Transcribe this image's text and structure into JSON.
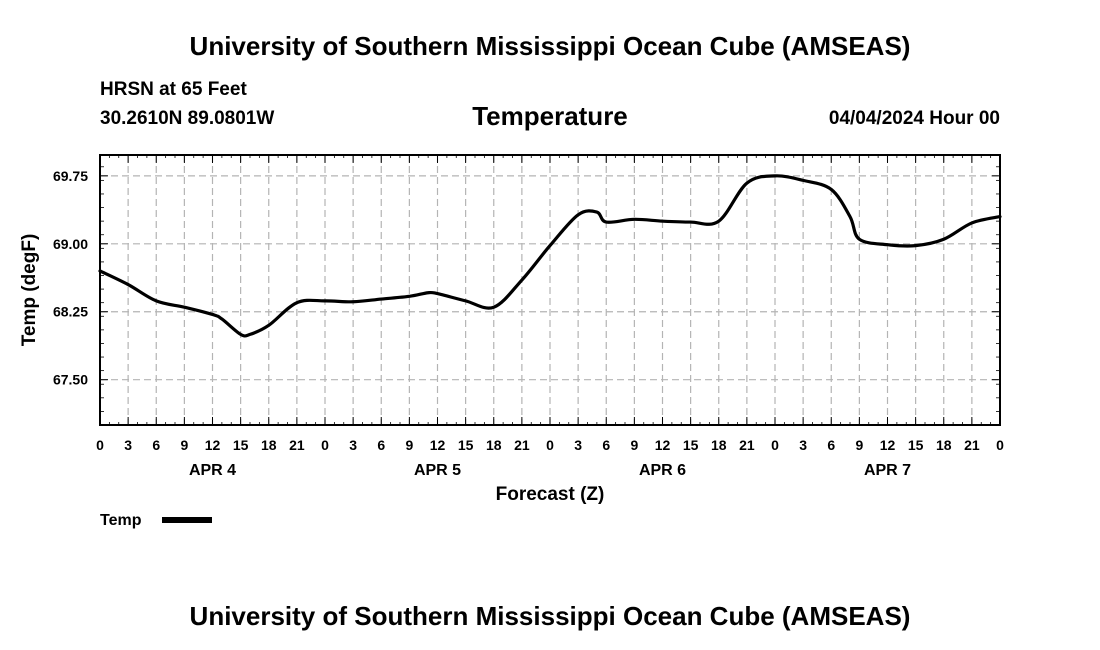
{
  "header": {
    "title": "University of Southern Mississippi Ocean Cube (AMSEAS)",
    "station": "HRSN at 65 Feet",
    "coords": "30.2610N  89.0801W",
    "date": "04/04/2024 Hour 00"
  },
  "footer": {
    "title": "University of Southern Mississippi Ocean Cube (AMSEAS)"
  },
  "chart_data": {
    "type": "line",
    "title": "Temperature",
    "xlabel": "Forecast (Z)",
    "ylabel": "Temp (degF)",
    "xlim": [
      0,
      96
    ],
    "ylim": [
      67.0,
      69.98
    ],
    "grid": true,
    "yticks": [
      67.5,
      68.25,
      69.0,
      69.75
    ],
    "ytick_labels": [
      "67.50",
      "68.25",
      "69.00",
      "69.75"
    ],
    "xtick_hours": [
      0,
      3,
      6,
      9,
      12,
      15,
      18,
      21,
      24,
      27,
      30,
      33,
      36,
      39,
      42,
      45,
      48,
      51,
      54,
      57,
      60,
      63,
      66,
      69,
      72,
      75,
      78,
      81,
      84,
      87,
      90,
      93,
      96
    ],
    "xtick_labels": [
      "0",
      "3",
      "6",
      "9",
      "12",
      "15",
      "18",
      "21",
      "0",
      "3",
      "6",
      "9",
      "12",
      "15",
      "18",
      "21",
      "0",
      "3",
      "6",
      "9",
      "12",
      "15",
      "18",
      "21",
      "0",
      "3",
      "6",
      "9",
      "12",
      "15",
      "18",
      "21",
      "0"
    ],
    "day_labels": [
      {
        "label": "APR 4",
        "hour": 12
      },
      {
        "label": "APR 5",
        "hour": 36
      },
      {
        "label": "APR 6",
        "hour": 60
      },
      {
        "label": "APR 7",
        "hour": 84
      }
    ],
    "legend": {
      "label": "Temp",
      "position": "bottom-left"
    },
    "series": [
      {
        "name": "Temp",
        "color": "#000000",
        "x": [
          0,
          3,
          6,
          9,
          12,
          13,
          15,
          16,
          18,
          21,
          24,
          27,
          30,
          33,
          35,
          36,
          39,
          42,
          45,
          48,
          51,
          53,
          54,
          57,
          60,
          63,
          66,
          69,
          72,
          75,
          78,
          80,
          81,
          84,
          87,
          90,
          93,
          96
        ],
        "y": [
          68.7,
          68.55,
          68.37,
          68.3,
          68.22,
          68.17,
          68.0,
          68.0,
          68.1,
          68.35,
          68.37,
          68.36,
          68.39,
          68.42,
          68.46,
          68.45,
          68.37,
          68.3,
          68.6,
          68.98,
          69.32,
          69.35,
          69.24,
          69.27,
          69.25,
          69.24,
          69.25,
          69.67,
          69.75,
          69.7,
          69.6,
          69.3,
          69.05,
          68.99,
          68.98,
          69.05,
          69.23,
          69.3
        ]
      }
    ]
  }
}
